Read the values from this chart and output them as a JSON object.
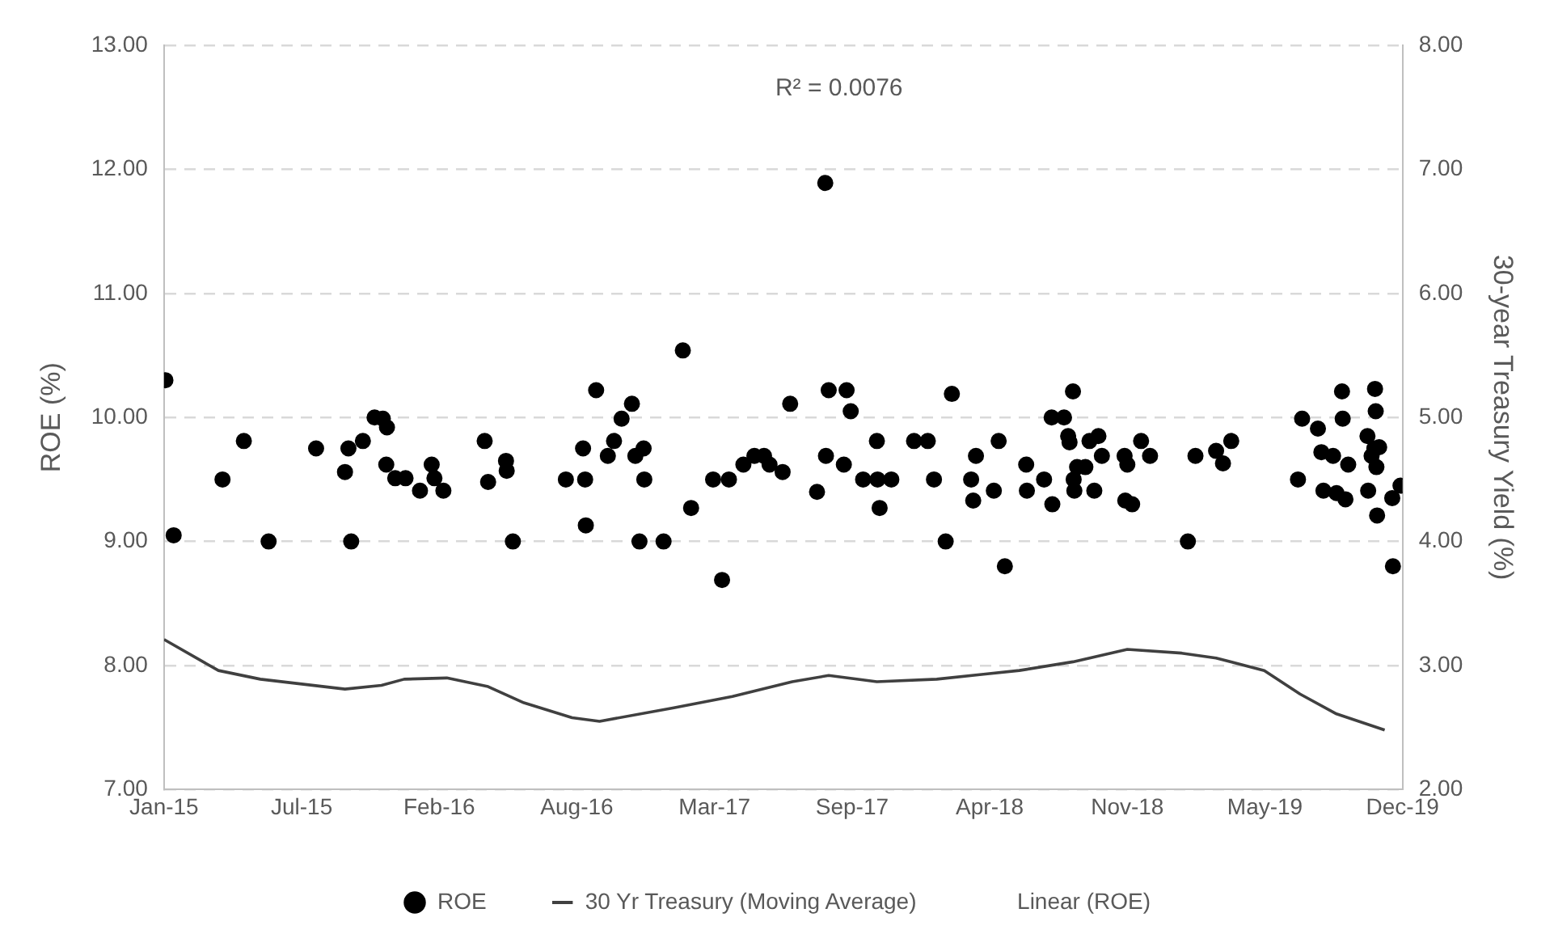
{
  "chart_data": {
    "type": "scatter",
    "xlabel": null,
    "ylabel": "ROE (%)",
    "y2label": "30-year Treasury Yield (%)",
    "annotations": [
      "R² = 0.0076",
      "Linear (ROE)"
    ],
    "xlim": [
      "2015-01-01",
      "2019-12-06"
    ],
    "xticks": [
      {
        "value": "2015-01-01",
        "label": "Jan-15"
      },
      {
        "value": "2015-07-20",
        "label": "Jul-15"
      },
      {
        "value": "2016-02-05",
        "label": "Feb-16"
      },
      {
        "value": "2016-08-23",
        "label": "Aug-16"
      },
      {
        "value": "2017-03-11",
        "label": "Mar-17"
      },
      {
        "value": "2017-09-27",
        "label": "Sep-17"
      },
      {
        "value": "2018-04-15",
        "label": "Apr-18"
      },
      {
        "value": "2018-11-01",
        "label": "Nov-18"
      },
      {
        "value": "2019-05-20",
        "label": "May-19"
      },
      {
        "value": "2019-12-06",
        "label": "Dec-19"
      }
    ],
    "ylim": [
      7,
      13
    ],
    "yticks": [
      {
        "value": 7,
        "label": "7.00"
      },
      {
        "value": 8,
        "label": "8.00"
      },
      {
        "value": 9,
        "label": "9.00"
      },
      {
        "value": 10,
        "label": "10.00"
      },
      {
        "value": 11,
        "label": "11.00"
      },
      {
        "value": 12,
        "label": "12.00"
      },
      {
        "value": 13,
        "label": "13.00"
      }
    ],
    "y2lim": [
      2,
      8
    ],
    "y2ticks": [
      {
        "value": 2,
        "label": "2.00"
      },
      {
        "value": 3,
        "label": "3.00"
      },
      {
        "value": 4,
        "label": "4.00"
      },
      {
        "value": 5,
        "label": "5.00"
      },
      {
        "value": 6,
        "label": "6.00"
      },
      {
        "value": 7,
        "label": "7.00"
      },
      {
        "value": 8,
        "label": "8.00"
      }
    ],
    "grid": "y",
    "legend": "bottom",
    "series": [
      {
        "name": "ROE",
        "type": "scatter",
        "marker": "circle",
        "color": "#000000",
        "x": [
          "2015-01-03",
          "2015-01-15",
          "2015-03-27",
          "2015-04-27",
          "2015-06-02",
          "2015-08-10",
          "2015-09-21",
          "2015-09-26",
          "2015-09-30",
          "2015-10-17",
          "2015-11-03",
          "2015-11-15",
          "2015-11-21",
          "2015-11-20",
          "2015-12-03",
          "2015-12-18",
          "2016-01-08",
          "2016-01-25",
          "2016-01-29",
          "2016-02-11",
          "2016-04-11",
          "2016-04-16",
          "2016-05-12",
          "2016-05-13",
          "2016-05-22",
          "2016-08-07",
          "2016-09-04",
          "2016-09-05",
          "2016-09-01",
          "2016-09-20",
          "2016-10-07",
          "2016-10-16",
          "2016-10-27",
          "2016-11-11",
          "2016-11-16",
          "2016-11-28",
          "2016-11-29",
          "2016-11-22",
          "2016-12-27",
          "2017-01-24",
          "2017-02-05",
          "2017-03-09",
          "2017-03-22",
          "2017-04-01",
          "2017-04-22",
          "2017-05-08",
          "2017-05-22",
          "2017-05-30",
          "2017-06-18",
          "2017-06-29",
          "2017-08-07",
          "2017-08-19",
          "2017-08-20",
          "2017-08-24",
          "2017-09-15",
          "2017-09-19",
          "2017-09-25",
          "2017-10-13",
          "2017-11-02",
          "2017-11-03",
          "2017-11-06",
          "2017-11-23",
          "2017-12-26",
          "2018-01-15",
          "2018-01-24",
          "2018-02-10",
          "2018-02-19",
          "2018-03-19",
          "2018-03-22",
          "2018-03-26",
          "2018-04-28",
          "2018-04-21",
          "2018-05-07",
          "2018-06-07",
          "2018-06-08",
          "2018-07-03",
          "2018-07-15",
          "2018-07-14",
          "2018-08-01",
          "2018-08-14",
          "2018-08-07",
          "2018-08-09",
          "2018-08-20",
          "2018-08-15",
          "2018-08-16",
          "2018-09-01",
          "2018-09-07",
          "2018-09-20",
          "2018-09-25",
          "2018-09-14",
          "2018-10-28",
          "2018-11-01",
          "2018-10-29",
          "2018-11-08",
          "2018-11-21",
          "2018-12-04",
          "2019-01-28",
          "2019-02-08",
          "2019-03-10",
          "2019-03-20",
          "2019-04-01",
          "2019-07-07",
          "2019-07-13",
          "2019-08-05",
          "2019-08-10",
          "2019-08-13",
          "2019-08-27",
          "2019-09-09",
          "2019-09-10",
          "2019-09-01",
          "2019-09-14",
          "2019-09-18",
          "2019-10-16",
          "2019-10-17",
          "2019-10-22",
          "2019-10-27",
          "2019-10-28",
          "2019-10-26",
          "2019-10-29",
          "2019-10-30",
          "2019-11-02",
          "2019-11-21",
          "2019-12-03",
          "2019-11-22"
        ],
        "values": [
          10.3,
          9.05,
          9.5,
          9.81,
          9.0,
          9.75,
          9.56,
          9.75,
          9.0,
          9.81,
          10.0,
          9.99,
          9.92,
          9.62,
          9.51,
          9.51,
          9.41,
          9.62,
          9.51,
          9.41,
          9.81,
          9.48,
          9.65,
          9.57,
          9.0,
          9.5,
          9.5,
          9.13,
          9.75,
          10.22,
          9.69,
          9.81,
          9.99,
          10.11,
          9.69,
          9.75,
          9.5,
          9.0,
          9.0,
          10.54,
          9.27,
          9.5,
          8.69,
          9.5,
          9.62,
          9.69,
          9.69,
          9.62,
          9.56,
          10.11,
          9.4,
          11.89,
          9.69,
          10.22,
          9.62,
          10.22,
          10.05,
          9.5,
          9.81,
          9.5,
          9.27,
          9.5,
          9.81,
          9.81,
          9.5,
          9.0,
          10.19,
          9.5,
          9.33,
          9.69,
          9.81,
          9.41,
          8.8,
          9.62,
          9.41,
          9.5,
          9.3,
          10.0,
          10.0,
          10.21,
          9.85,
          9.8,
          9.6,
          9.5,
          9.41,
          9.6,
          9.81,
          9.85,
          9.69,
          9.41,
          9.69,
          9.62,
          9.33,
          9.3,
          9.81,
          9.69,
          9.0,
          9.69,
          9.73,
          9.63,
          9.81,
          9.5,
          9.99,
          9.91,
          9.72,
          9.41,
          9.69,
          10.21,
          9.99,
          9.39,
          9.34,
          9.62,
          9.85,
          9.41,
          9.69,
          10.23,
          10.05,
          9.75,
          9.6,
          9.21,
          9.76,
          9.35,
          9.45,
          8.8
        ]
      },
      {
        "name": "30 Yr Treasury (Moving Average)",
        "type": "line",
        "axis": "y2",
        "marker": "none",
        "line_style": "solid",
        "color": "#404040",
        "x": [
          "2015-01-01",
          "2015-03-21",
          "2015-05-21",
          "2015-09-21",
          "2015-11-13",
          "2015-12-16",
          "2016-02-16",
          "2016-04-16",
          "2016-06-07",
          "2016-08-16",
          "2016-09-25",
          "2017-01-11",
          "2017-04-06",
          "2017-07-02",
          "2017-08-24",
          "2017-11-02",
          "2018-01-28",
          "2018-04-06",
          "2018-05-28",
          "2018-08-14",
          "2018-11-01",
          "2019-01-19",
          "2019-03-10",
          "2019-05-19",
          "2019-07-10",
          "2019-09-01",
          "2019-11-10"
        ],
        "values": [
          3.21,
          2.96,
          2.89,
          2.81,
          2.84,
          2.89,
          2.9,
          2.83,
          2.7,
          2.58,
          2.55,
          2.66,
          2.75,
          2.87,
          2.92,
          2.87,
          2.89,
          2.93,
          2.96,
          3.03,
          3.13,
          3.1,
          3.06,
          2.96,
          2.77,
          2.61,
          2.48
        ]
      }
    ]
  }
}
